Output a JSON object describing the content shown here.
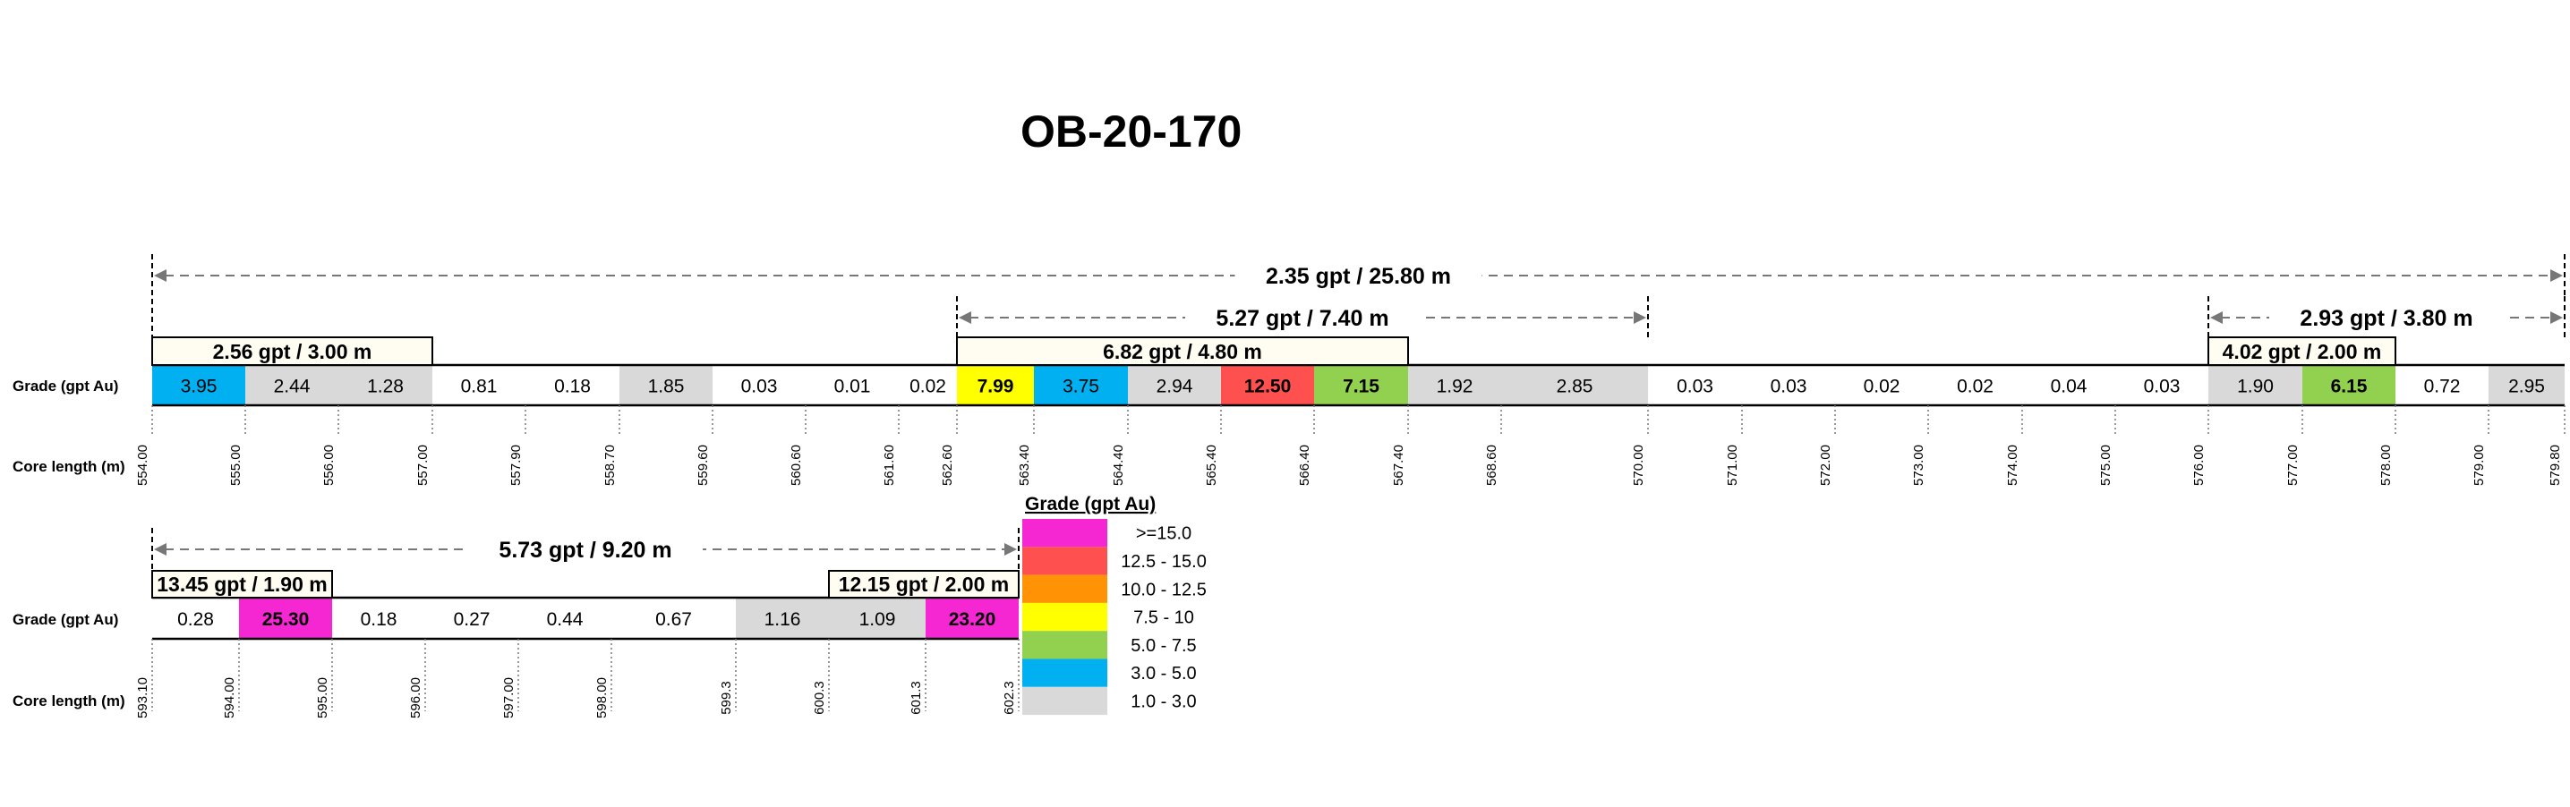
{
  "title": "OB-20-170",
  "row_labels": {
    "grade": "Grade (gpt Au)",
    "core_length": "Core length (m)"
  },
  "colors": {
    "ge15": "#f527d2",
    "12.5-15": "#ff5050",
    "10-12.5": "#ff9305",
    "7.5-10": "#ffff00",
    "5-7.5": "#92d050",
    "3-5": "#00b0f0",
    "1-3": "#d9d9d9",
    "lt1": "#ffffff"
  },
  "legend": {
    "title": "Grade (gpt Au)",
    "items": [
      {
        "label": ">=15.0",
        "color_key": "ge15"
      },
      {
        "label": "12.5 - 15.0",
        "color_key": "12.5-15"
      },
      {
        "label": "10.0 - 12.5",
        "color_key": "10-12.5"
      },
      {
        "label": "7.5 - 10",
        "color_key": "7.5-10"
      },
      {
        "label": "5.0 - 7.5",
        "color_key": "5-7.5"
      },
      {
        "label": "3.0 - 5.0",
        "color_key": "3-5"
      },
      {
        "label": "1.0 - 3.0",
        "color_key": "1-3"
      }
    ]
  },
  "sections": [
    {
      "depths": [
        "554.00",
        "555.00",
        "556.00",
        "557.00",
        "557.90",
        "558.70",
        "559.60",
        "560.60",
        "561.60",
        "562.60",
        "563.40",
        "564.40",
        "565.40",
        "566.40",
        "567.40",
        "568.60",
        "570.00",
        "571.00",
        "572.00",
        "573.00",
        "574.00",
        "575.00",
        "576.00",
        "577.00",
        "578.00",
        "579.00",
        "579.80"
      ],
      "grades": [
        {
          "v": "3.95",
          "c": "3-5",
          "b": false
        },
        {
          "v": "2.44",
          "c": "1-3",
          "b": false
        },
        {
          "v": "1.28",
          "c": "1-3",
          "b": false
        },
        {
          "v": "0.81",
          "c": "lt1",
          "b": false
        },
        {
          "v": "0.18",
          "c": "lt1",
          "b": false
        },
        {
          "v": "1.85",
          "c": "1-3",
          "b": false
        },
        {
          "v": "0.03",
          "c": "lt1",
          "b": false
        },
        {
          "v": "0.01",
          "c": "lt1",
          "b": false
        },
        {
          "v": "0.02",
          "c": "lt1",
          "b": false
        },
        {
          "v": "7.99",
          "c": "7.5-10",
          "b": true
        },
        {
          "v": "3.75",
          "c": "3-5",
          "b": false
        },
        {
          "v": "2.94",
          "c": "1-3",
          "b": false
        },
        {
          "v": "12.50",
          "c": "12.5-15",
          "b": true
        },
        {
          "v": "7.15",
          "c": "5-7.5",
          "b": true
        },
        {
          "v": "1.92",
          "c": "1-3",
          "b": false
        },
        {
          "v": "2.85",
          "c": "1-3",
          "b": false
        },
        {
          "v": "0.03",
          "c": "lt1",
          "b": false
        },
        {
          "v": "0.03",
          "c": "lt1",
          "b": false
        },
        {
          "v": "0.02",
          "c": "lt1",
          "b": false
        },
        {
          "v": "0.02",
          "c": "lt1",
          "b": false
        },
        {
          "v": "0.04",
          "c": "lt1",
          "b": false
        },
        {
          "v": "0.03",
          "c": "lt1",
          "b": false
        },
        {
          "v": "1.90",
          "c": "1-3",
          "b": false
        },
        {
          "v": "6.15",
          "c": "5-7.5",
          "b": true
        },
        {
          "v": "0.72",
          "c": "lt1",
          "b": false
        },
        {
          "v": "2.95",
          "c": "1-3",
          "b": false
        }
      ],
      "spans": [
        {
          "from": 0,
          "to": 26,
          "label": "2.35 gpt / 25.80 m"
        },
        {
          "from": 9,
          "to": 16,
          "label": "5.27 gpt / 7.40 m"
        },
        {
          "from": 22,
          "to": 26,
          "label": "2.93 gpt / 3.80 m"
        }
      ],
      "intercepts": [
        {
          "from": 0,
          "to": 3,
          "label": "2.56 gpt / 3.00 m"
        },
        {
          "from": 9,
          "to": 14,
          "label": "6.82 gpt / 4.80 m"
        },
        {
          "from": 22,
          "to": 24,
          "label": "4.02 gpt / 2.00 m"
        }
      ]
    },
    {
      "depths": [
        "593.10",
        "594.00",
        "595.00",
        "596.00",
        "597.00",
        "598.00",
        "599.3",
        "600.3",
        "601.3",
        "602.3"
      ],
      "grades": [
        {
          "v": "0.28",
          "c": "lt1",
          "b": false
        },
        {
          "v": "25.30",
          "c": "ge15",
          "b": true
        },
        {
          "v": "0.18",
          "c": "lt1",
          "b": false
        },
        {
          "v": "0.27",
          "c": "lt1",
          "b": false
        },
        {
          "v": "0.44",
          "c": "lt1",
          "b": false
        },
        {
          "v": "0.67",
          "c": "lt1",
          "b": false
        },
        {
          "v": "1.16",
          "c": "1-3",
          "b": false
        },
        {
          "v": "1.09",
          "c": "1-3",
          "b": false
        },
        {
          "v": "23.20",
          "c": "ge15",
          "b": true
        }
      ],
      "spans": [
        {
          "from": 0,
          "to": 9,
          "label": "5.73 gpt / 9.20 m"
        }
      ],
      "intercepts": [
        {
          "from": 0,
          "to": 2,
          "label": "13.45 gpt / 1.90 m"
        },
        {
          "from": 7,
          "to": 9,
          "label": "12.15 gpt / 2.00 m"
        }
      ]
    }
  ]
}
